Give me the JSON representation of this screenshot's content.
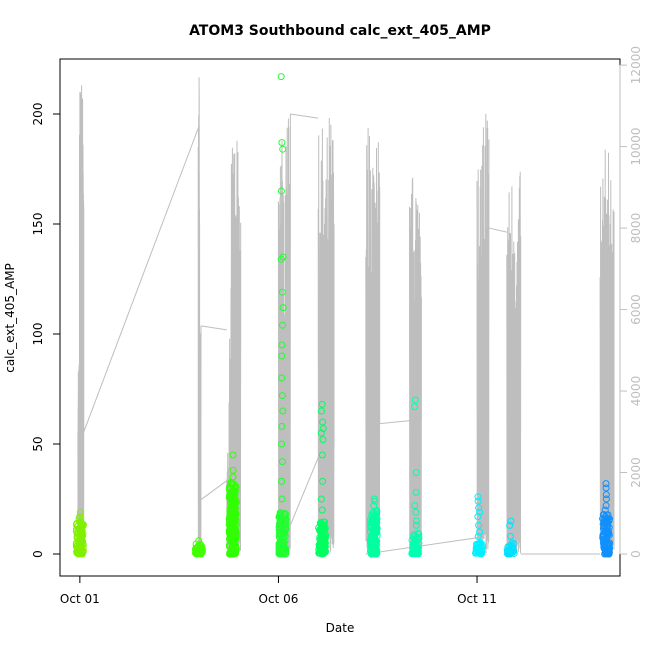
{
  "chart_data": {
    "type": "scatter",
    "title": "ATOM3 Southbound calc_ext_405_AMP",
    "xlabel": "Date",
    "ylabel": "calc_ext_405_AMP",
    "x_ticks": [
      "Oct 01",
      "Oct 06",
      "Oct 11"
    ],
    "x_range_days": [
      0.5,
      14.6
    ],
    "ylim": [
      -10,
      225
    ],
    "y_ticks": [
      0,
      50,
      100,
      150,
      200
    ],
    "y2lim": [
      -540,
      12150
    ],
    "y2_ticks": [
      0,
      2000,
      4000,
      6000,
      8000,
      10000,
      12000
    ],
    "y2_color": "#bebebe",
    "grid": false,
    "legend": "none",
    "point_series": [
      {
        "x": 1.0,
        "low": 0,
        "high": 15,
        "outliers": [
          16,
          17,
          19
        ],
        "color": "#80f000"
      },
      {
        "x": 4.0,
        "low": 0,
        "high": 5,
        "outliers": [
          6
        ],
        "color": "#40ff00"
      },
      {
        "x": 4.85,
        "low": 0,
        "high": 33,
        "outliers": [
          35,
          38,
          45
        ],
        "color": "#30ff00"
      },
      {
        "x": 6.1,
        "low": 0,
        "high": 19,
        "outliers": [
          25,
          33,
          42,
          50,
          58,
          65,
          72,
          80,
          90,
          95,
          104,
          112,
          119,
          134,
          135,
          165,
          184,
          187,
          217
        ],
        "color": "#20ff30"
      },
      {
        "x": 7.1,
        "low": 0,
        "high": 15,
        "outliers": [
          20,
          25,
          33,
          45,
          52,
          55,
          57,
          60,
          65,
          68
        ],
        "color": "#00ff60"
      },
      {
        "x": 8.4,
        "low": 0,
        "high": 20,
        "outliers": [
          22,
          24,
          25
        ],
        "color": "#00ffa0"
      },
      {
        "x": 9.45,
        "low": 0,
        "high": 10,
        "outliers": [
          13,
          15,
          19,
          22,
          28,
          37,
          67,
          70
        ],
        "color": "#00ffb0"
      },
      {
        "x": 11.05,
        "low": 0,
        "high": 5,
        "outliers": [
          8,
          10,
          13,
          17,
          19,
          21,
          24,
          26
        ],
        "color": "#00f0ff"
      },
      {
        "x": 11.85,
        "low": 0,
        "high": 5,
        "outliers": [
          8,
          13,
          15
        ],
        "color": "#00e0ff"
      },
      {
        "x": 14.25,
        "low": 0,
        "high": 18,
        "outliers": [
          20,
          22,
          25,
          27,
          30,
          32
        ],
        "color": "#1090ff"
      }
    ],
    "line_series": {
      "color": "#bebebe",
      "axis": "right",
      "clusters": [
        {
          "x0": 0.95,
          "x1": 1.1,
          "peaks": [
            5000,
            11700,
            11800,
            11600
          ],
          "end": 3000
        },
        {
          "x0": 3.98,
          "x1": 4.05,
          "peaks": [
            12300,
            5600
          ],
          "end": 5600
        },
        {
          "x0": 4.7,
          "x1": 5.05,
          "peaks": [
            3000,
            6000,
            10000,
            10300,
            9300,
            10200,
            9400
          ],
          "end": 5000
        },
        {
          "x0": 6.0,
          "x1": 6.3,
          "peaks": [
            10700,
            10500,
            9000,
            11500,
            10800
          ],
          "end": 10800
        },
        {
          "x0": 7.0,
          "x1": 7.4,
          "peaks": [
            10300,
            10600,
            9800,
            10400,
            10900,
            10700
          ],
          "end": 2600
        },
        {
          "x0": 8.2,
          "x1": 8.55,
          "peaks": [
            10800,
            10700,
            10200,
            11700
          ],
          "end": 3200
        },
        {
          "x0": 9.3,
          "x1": 9.6,
          "peaks": [
            9000,
            9400,
            9800,
            9300,
            10500
          ],
          "end": 3300
        },
        {
          "x0": 11.0,
          "x1": 11.3,
          "peaks": [
            9800,
            10000,
            10600,
            11600,
            11300
          ],
          "end": 8000
        },
        {
          "x0": 11.75,
          "x1": 12.1,
          "peaks": [
            9100,
            9500,
            9700,
            8500,
            9400
          ],
          "end": 7800
        },
        {
          "x0": 14.1,
          "x1": 14.45,
          "peaks": [
            9400,
            10000,
            10100,
            9800,
            9900
          ],
          "end": 100
        }
      ],
      "connectors": [
        {
          "from": [
            1.1,
            3000
          ],
          "to": [
            3.98,
            10450
          ]
        },
        {
          "from": [
            4.05,
            5600
          ],
          "to": [
            4.7,
            5500
          ]
        },
        {
          "from": [
            4.0,
            1300
          ],
          "to": [
            4.7,
            1800
          ]
        },
        {
          "from": [
            6.0,
            0
          ],
          "to": [
            7.1,
            2600
          ]
        },
        {
          "from": [
            6.3,
            10800
          ],
          "to": [
            7.0,
            10700
          ]
        },
        {
          "from": [
            8.55,
            3200
          ],
          "to": [
            9.6,
            3300
          ]
        },
        {
          "from": [
            8.2,
            0
          ],
          "to": [
            11.0,
            400
          ]
        },
        {
          "from": [
            11.3,
            8000
          ],
          "to": [
            11.75,
            7900
          ]
        },
        {
          "from": [
            12.1,
            0
          ],
          "to": [
            14.1,
            0
          ]
        }
      ]
    }
  }
}
